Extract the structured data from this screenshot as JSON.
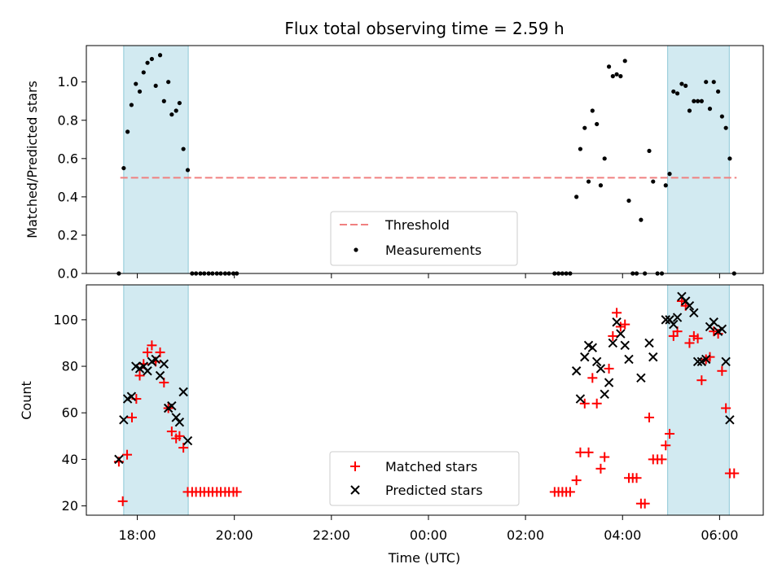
{
  "chart_data": {
    "type": "scatter",
    "title": "Flux total observing time = 2.59 h",
    "xlabel": "Time (UTC)",
    "x_unit": "hours since 17:00 UTC",
    "xlim": [
      -0.05,
      13.9
    ],
    "x_ticks": [
      {
        "value": 1,
        "label": "18:00"
      },
      {
        "value": 3,
        "label": "20:00"
      },
      {
        "value": 5,
        "label": "22:00"
      },
      {
        "value": 7,
        "label": "00:00"
      },
      {
        "value": 9,
        "label": "02:00"
      },
      {
        "value": 11,
        "label": "04:00"
      },
      {
        "value": 13,
        "label": "06:00"
      }
    ],
    "shaded_intervals": [
      [
        0.72,
        2.05
      ],
      [
        11.93,
        13.2
      ]
    ],
    "shade_color": "#add8e6",
    "panels": [
      {
        "name": "ratio",
        "ylabel": "Matched/Predicted stars",
        "ylim": [
          0,
          1.19
        ],
        "y_ticks": [
          0.0,
          0.2,
          0.4,
          0.6,
          0.8,
          1.0
        ],
        "threshold": 0.5,
        "threshold_x_range": [
          0.65,
          13.35
        ],
        "threshold_color": "#f08080",
        "measure_color": "#000000",
        "legend": [
          {
            "label": "Threshold",
            "marker": "dash"
          },
          {
            "label": "Measurements",
            "marker": "dot"
          }
        ],
        "measurements": [
          [
            0.62,
            0.0
          ],
          [
            0.72,
            0.55
          ],
          [
            0.8,
            0.74
          ],
          [
            0.88,
            0.88
          ],
          [
            0.97,
            0.99
          ],
          [
            1.05,
            0.95
          ],
          [
            1.13,
            1.05
          ],
          [
            1.21,
            1.1
          ],
          [
            1.3,
            1.12
          ],
          [
            1.38,
            0.98
          ],
          [
            1.47,
            1.14
          ],
          [
            1.55,
            0.9
          ],
          [
            1.64,
            1.0
          ],
          [
            1.71,
            0.83
          ],
          [
            1.8,
            0.85
          ],
          [
            1.87,
            0.89
          ],
          [
            1.95,
            0.65
          ],
          [
            2.04,
            0.54
          ],
          [
            2.13,
            0.0
          ],
          [
            2.21,
            0.0
          ],
          [
            2.3,
            0.0
          ],
          [
            2.38,
            0.0
          ],
          [
            2.47,
            0.0
          ],
          [
            2.55,
            0.0
          ],
          [
            2.64,
            0.0
          ],
          [
            2.72,
            0.0
          ],
          [
            2.81,
            0.0
          ],
          [
            2.89,
            0.0
          ],
          [
            2.98,
            0.0
          ],
          [
            3.05,
            0.0
          ],
          [
            9.6,
            0.0
          ],
          [
            9.68,
            0.0
          ],
          [
            9.76,
            0.0
          ],
          [
            9.84,
            0.0
          ],
          [
            9.92,
            0.0
          ],
          [
            10.05,
            0.4
          ],
          [
            10.13,
            0.65
          ],
          [
            10.22,
            0.76
          ],
          [
            10.3,
            0.48
          ],
          [
            10.38,
            0.85
          ],
          [
            10.47,
            0.78
          ],
          [
            10.55,
            0.46
          ],
          [
            10.63,
            0.6
          ],
          [
            10.72,
            1.08
          ],
          [
            10.8,
            1.03
          ],
          [
            10.88,
            1.04
          ],
          [
            10.96,
            1.03
          ],
          [
            11.05,
            1.11
          ],
          [
            11.13,
            0.38
          ],
          [
            11.21,
            0.0
          ],
          [
            11.29,
            0.0
          ],
          [
            11.38,
            0.28
          ],
          [
            11.46,
            0.0
          ],
          [
            11.55,
            0.64
          ],
          [
            11.63,
            0.48
          ],
          [
            11.72,
            0.0
          ],
          [
            11.81,
            0.0
          ],
          [
            11.89,
            0.46
          ],
          [
            11.97,
            0.52
          ],
          [
            12.05,
            0.95
          ],
          [
            12.13,
            0.94
          ],
          [
            12.22,
            0.99
          ],
          [
            12.3,
            0.98
          ],
          [
            12.38,
            0.85
          ],
          [
            12.47,
            0.9
          ],
          [
            12.55,
            0.9
          ],
          [
            12.63,
            0.9
          ],
          [
            12.72,
            1.0
          ],
          [
            12.8,
            0.86
          ],
          [
            12.88,
            1.0
          ],
          [
            12.97,
            0.95
          ],
          [
            13.05,
            0.82
          ],
          [
            13.13,
            0.76
          ],
          [
            13.21,
            0.6
          ],
          [
            13.3,
            0.0
          ]
        ]
      },
      {
        "name": "counts",
        "ylabel": "Count",
        "ylim": [
          16,
          115
        ],
        "y_ticks": [
          20,
          40,
          60,
          80,
          100
        ],
        "matched_color": "#ff0000",
        "predicted_color": "#000000",
        "legend": [
          {
            "label": "Matched stars",
            "marker": "plus"
          },
          {
            "label": "Predicted stars",
            "marker": "x"
          }
        ],
        "matched": [
          [
            0.62,
            39
          ],
          [
            0.7,
            22
          ],
          [
            0.79,
            42
          ],
          [
            0.89,
            58
          ],
          [
            0.98,
            66
          ],
          [
            1.05,
            76
          ],
          [
            1.13,
            81
          ],
          [
            1.21,
            86
          ],
          [
            1.3,
            89
          ],
          [
            1.38,
            82
          ],
          [
            1.47,
            86
          ],
          [
            1.55,
            73
          ],
          [
            1.64,
            62
          ],
          [
            1.71,
            52
          ],
          [
            1.8,
            49
          ],
          [
            1.87,
            50
          ],
          [
            1.95,
            45
          ],
          [
            2.04,
            26
          ],
          [
            2.13,
            26
          ],
          [
            2.21,
            26
          ],
          [
            2.3,
            26
          ],
          [
            2.38,
            26
          ],
          [
            2.47,
            26
          ],
          [
            2.55,
            26
          ],
          [
            2.64,
            26
          ],
          [
            2.72,
            26
          ],
          [
            2.81,
            26
          ],
          [
            2.89,
            26
          ],
          [
            2.98,
            26
          ],
          [
            3.05,
            26
          ],
          [
            9.6,
            26
          ],
          [
            9.68,
            26
          ],
          [
            9.76,
            26
          ],
          [
            9.84,
            26
          ],
          [
            9.92,
            26
          ],
          [
            10.05,
            31
          ],
          [
            10.13,
            43
          ],
          [
            10.22,
            64
          ],
          [
            10.3,
            43
          ],
          [
            10.38,
            75
          ],
          [
            10.47,
            64
          ],
          [
            10.55,
            36
          ],
          [
            10.63,
            41
          ],
          [
            10.72,
            79
          ],
          [
            10.8,
            93
          ],
          [
            10.88,
            103
          ],
          [
            10.96,
            97
          ],
          [
            11.05,
            98
          ],
          [
            11.13,
            32
          ],
          [
            11.21,
            32
          ],
          [
            11.29,
            32
          ],
          [
            11.38,
            21
          ],
          [
            11.46,
            21
          ],
          [
            11.55,
            58
          ],
          [
            11.63,
            40
          ],
          [
            11.72,
            40
          ],
          [
            11.81,
            40
          ],
          [
            11.89,
            46
          ],
          [
            11.97,
            51
          ],
          [
            12.05,
            93
          ],
          [
            12.13,
            95
          ],
          [
            12.22,
            108
          ],
          [
            12.3,
            106
          ],
          [
            12.38,
            90
          ],
          [
            12.47,
            93
          ],
          [
            12.55,
            92
          ],
          [
            12.63,
            74
          ],
          [
            12.72,
            83
          ],
          [
            12.8,
            84
          ],
          [
            12.88,
            95
          ],
          [
            12.97,
            94
          ],
          [
            13.05,
            78
          ],
          [
            13.13,
            62
          ],
          [
            13.21,
            34
          ],
          [
            13.3,
            34
          ]
        ],
        "predicted": [
          [
            0.62,
            40
          ],
          [
            0.72,
            57
          ],
          [
            0.8,
            66
          ],
          [
            0.88,
            67
          ],
          [
            0.97,
            80
          ],
          [
            1.05,
            79
          ],
          [
            1.13,
            80
          ],
          [
            1.21,
            78
          ],
          [
            1.3,
            82
          ],
          [
            1.38,
            83
          ],
          [
            1.47,
            76
          ],
          [
            1.55,
            81
          ],
          [
            1.64,
            62
          ],
          [
            1.71,
            63
          ],
          [
            1.8,
            58
          ],
          [
            1.87,
            56
          ],
          [
            1.95,
            69
          ],
          [
            2.04,
            48
          ],
          [
            10.05,
            78
          ],
          [
            10.13,
            66
          ],
          [
            10.22,
            84
          ],
          [
            10.3,
            89
          ],
          [
            10.38,
            88
          ],
          [
            10.47,
            82
          ],
          [
            10.55,
            79
          ],
          [
            10.63,
            68
          ],
          [
            10.72,
            73
          ],
          [
            10.8,
            90
          ],
          [
            10.88,
            99
          ],
          [
            10.96,
            94
          ],
          [
            11.05,
            89
          ],
          [
            11.13,
            83
          ],
          [
            11.38,
            75
          ],
          [
            11.55,
            90
          ],
          [
            11.63,
            84
          ],
          [
            11.89,
            100
          ],
          [
            11.97,
            100
          ],
          [
            12.05,
            98
          ],
          [
            12.13,
            101
          ],
          [
            12.22,
            110
          ],
          [
            12.3,
            108
          ],
          [
            12.38,
            106
          ],
          [
            12.47,
            103
          ],
          [
            12.55,
            82
          ],
          [
            12.63,
            82
          ],
          [
            12.72,
            83
          ],
          [
            12.8,
            97
          ],
          [
            12.88,
            99
          ],
          [
            12.97,
            95
          ],
          [
            13.05,
            96
          ],
          [
            13.13,
            82
          ],
          [
            13.21,
            57
          ]
        ]
      }
    ]
  }
}
